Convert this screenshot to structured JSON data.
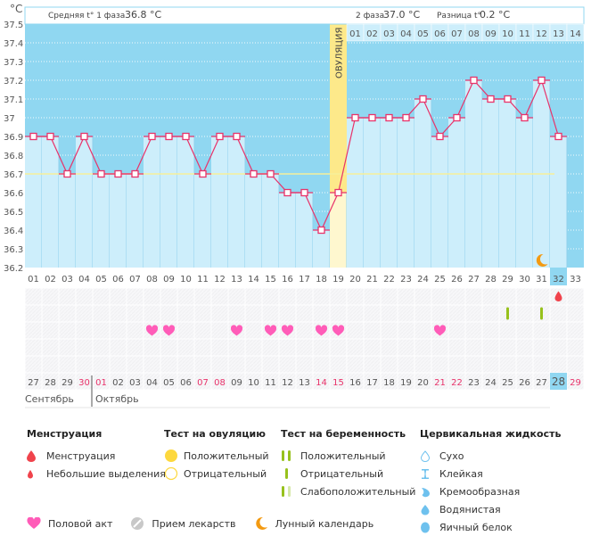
{
  "chart_data": {
    "type": "line",
    "title": "",
    "ylabel": "°C",
    "ylim": [
      36.2,
      37.5
    ],
    "yticks": [
      "37.5",
      "37.4",
      "37.3",
      "37.2",
      "37.1",
      "37",
      "36.9",
      "36.8",
      "36.7",
      "36.6",
      "36.5",
      "36.4",
      "36.3",
      "36.2"
    ],
    "grid": true,
    "x": [
      1,
      2,
      3,
      4,
      5,
      6,
      7,
      8,
      9,
      10,
      11,
      12,
      13,
      14,
      15,
      16,
      17,
      18,
      19,
      20,
      21,
      22,
      23,
      24,
      25,
      26,
      27,
      28,
      29,
      30,
      31,
      32,
      33
    ],
    "x_labels": [
      "01",
      "02",
      "03",
      "04",
      "05",
      "06",
      "07",
      "08",
      "09",
      "10",
      "11",
      "12",
      "13",
      "14",
      "15",
      "16",
      "17",
      "18",
      "19",
      "20",
      "21",
      "22",
      "23",
      "24",
      "25",
      "26",
      "27",
      "28",
      "29",
      "30",
      "31",
      "32",
      "33"
    ],
    "series": [
      {
        "name": "Базальная температура",
        "values": [
          36.9,
          36.9,
          36.7,
          36.9,
          36.7,
          36.7,
          36.7,
          36.9,
          36.9,
          36.9,
          36.7,
          36.9,
          36.9,
          36.7,
          36.7,
          36.6,
          36.6,
          36.4,
          36.6,
          37.0,
          37.0,
          37.0,
          37.0,
          37.1,
          36.9,
          37.0,
          37.2,
          37.1,
          37.1,
          37.0,
          37.2,
          36.9,
          null
        ]
      }
    ],
    "cover_line": 36.7,
    "ovulation_day": 19,
    "current_day": 32,
    "phase2_day_labels": [
      "01",
      "02",
      "03",
      "04",
      "05",
      "06",
      "07",
      "08",
      "09",
      "10",
      "11",
      "12",
      "13",
      "14"
    ],
    "annotations": {
      "phase1_label": "Средняя t° 1 фаза",
      "phase1_value": "36.8 °C",
      "phase2_label": "2 фаза",
      "phase2_value": "37.0 °C",
      "diff_label": "Разница t°",
      "diff_value": "0.2 °C",
      "ovulation_label": "ОВУЛЯЦИЯ"
    },
    "moon_day": 31
  },
  "events": {
    "bleeding_light_days": [
      32
    ],
    "pregnancy_test_negative_days": [
      29,
      31
    ],
    "intercourse_days": [
      8,
      9,
      13,
      15,
      16,
      18,
      19,
      25
    ]
  },
  "calendar": {
    "dates": [
      "27",
      "28",
      "29",
      "30",
      "01",
      "02",
      "03",
      "04",
      "05",
      "06",
      "07",
      "08",
      "09",
      "10",
      "11",
      "12",
      "13",
      "14",
      "15",
      "16",
      "17",
      "18",
      "19",
      "20",
      "21",
      "22",
      "23",
      "24",
      "25",
      "26",
      "27",
      "28",
      "29"
    ],
    "weekend_indices": [
      3,
      4,
      10,
      11,
      17,
      18,
      24,
      25,
      32
    ],
    "today_index": 31,
    "months": [
      {
        "label": "Сентябрь"
      },
      {
        "label": "Октябрь"
      }
    ]
  },
  "colors": {
    "sky": "#90d7f1",
    "bar": "#cdeefb",
    "line": "#e8336a",
    "ovulation": "#fde98a",
    "ovulation_light": "#fef7cf",
    "cover": "#f6ef9a",
    "weekend": "#e8336a",
    "heart": "#ff5cb8",
    "drop": "#f0434c",
    "test": "#97c11c",
    "test_light": "#d6e9a8",
    "sun": "#fdd83e",
    "moon": "#f39a12",
    "fluid": "#6ec1ee"
  },
  "legend": {
    "menstruation": {
      "title": "Менструация",
      "items": [
        "Менструация",
        "Небольшие выделения"
      ]
    },
    "ovulation_test": {
      "title": "Тест на овуляцию",
      "items": [
        "Положительный",
        "Отрицательный"
      ]
    },
    "pregnancy_test": {
      "title": "Тест на беременность",
      "items": [
        "Положительный",
        "Отрицательный",
        "Слабоположительный"
      ]
    },
    "cervical_fluid": {
      "title": "Цервикальная жидкость",
      "items": [
        "Сухо",
        "Клейкая",
        "Кремообразная",
        "Водянистая",
        "Яичный белок"
      ]
    },
    "bottom": [
      "Половой акт",
      "Прием лекарств",
      "Лунный календарь"
    ]
  }
}
